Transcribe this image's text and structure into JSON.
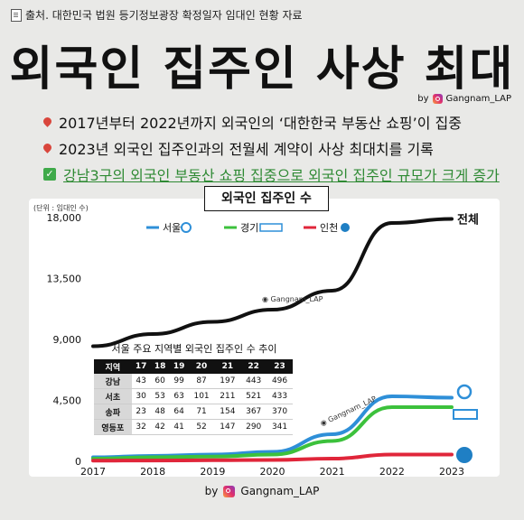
{
  "source": "출처. 대한민국 법원 등기정보광장 확정일자 임대인 현황 자료",
  "headline": "외국인 집주인 사상 최대",
  "byline": {
    "prefix": "by",
    "handle": "Gangnam_LAP"
  },
  "bullets": [
    {
      "icon": "pin-icon",
      "text": "2017년부터 2022년까지 외국인의 ‘대한한국 부동산 쇼핑’이 집중"
    },
    {
      "icon": "pin-icon",
      "text": "2023년 외국인 집주인과의 전월세 계약이 사상 최대치를 기록"
    },
    {
      "icon": "check-icon",
      "text": "강남3구의 외국인 부동산 쇼핑 집중으로 외국인 집주인 규모가 크게 증가"
    }
  ],
  "colors": {
    "total": "#111111",
    "seoul": "#2e8fd8",
    "gyeonggi": "#3cc13c",
    "incheon": "#e0263a"
  },
  "chart_data": {
    "type": "line",
    "title": "외국인 집주인 수",
    "unit_label": "(단위 : 임대인 수)",
    "x": [
      "2017",
      "2018",
      "2019",
      "2020",
      "2021",
      "2022",
      "2023"
    ],
    "yticks": [
      "18,000",
      "13,500",
      "9,000",
      "4,500",
      "0"
    ],
    "ylim": [
      0,
      18000
    ],
    "legend_position": "top",
    "series": [
      {
        "name": "전체",
        "values": [
          8500,
          9400,
          10300,
          11200,
          12600,
          17600,
          17900
        ]
      },
      {
        "name": "서울",
        "values": [
          300,
          400,
          500,
          700,
          2000,
          4800,
          4700
        ]
      },
      {
        "name": "경기",
        "values": [
          200,
          300,
          350,
          500,
          1500,
          4000,
          4000
        ]
      },
      {
        "name": "인천",
        "values": [
          50,
          60,
          80,
          100,
          200,
          500,
          500
        ]
      }
    ],
    "watermark": "Gangnam_LAP",
    "table": {
      "title": "서울 주요 지역별 외국인 집주인 수 추이",
      "headers": [
        "지역",
        "17",
        "18",
        "19",
        "20",
        "21",
        "22",
        "23"
      ],
      "rows": [
        [
          "강남",
          "43",
          "60",
          "99",
          "87",
          "197",
          "443",
          "496"
        ],
        [
          "서초",
          "30",
          "53",
          "63",
          "101",
          "211",
          "521",
          "433"
        ],
        [
          "송파",
          "23",
          "48",
          "64",
          "71",
          "154",
          "367",
          "370"
        ],
        [
          "영등포",
          "32",
          "42",
          "41",
          "52",
          "147",
          "290",
          "341"
        ]
      ]
    }
  }
}
